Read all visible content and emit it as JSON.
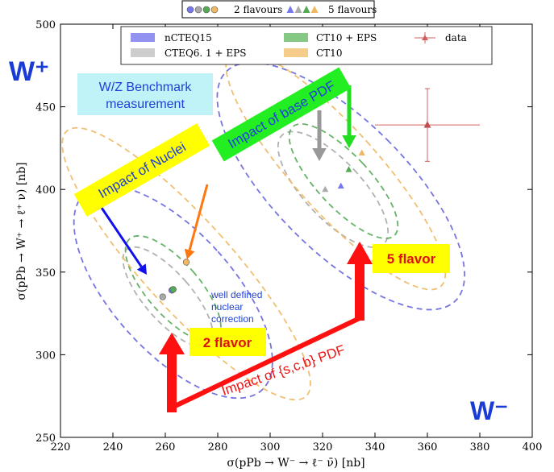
{
  "chart_data": {
    "type": "scatter",
    "title": "",
    "xlabel": "σ(pPb → W⁻ → ℓ⁻ ν̄) [nb]",
    "ylabel": "σ(pPb → W⁺ → ℓ⁺ ν) [nb]",
    "xlim": [
      220,
      400
    ],
    "ylim": [
      250,
      500
    ],
    "xticks": [
      220,
      240,
      260,
      280,
      300,
      320,
      340,
      360,
      380,
      400
    ],
    "yticks": [
      250,
      300,
      350,
      400,
      450,
      500
    ],
    "grid": false,
    "top_legend": {
      "placement": "top-center-outside",
      "entries": [
        {
          "label": "2 flavours",
          "marker": "circle"
        },
        {
          "label": "5 flavours",
          "marker": "triangle"
        }
      ]
    },
    "legend": {
      "placement": "top",
      "entries": [
        {
          "label": "nCTEQ15",
          "color": "#7777ee",
          "kind": "patch"
        },
        {
          "label": "CTEQ6. 1 + EPS",
          "color": "#c0c0c0",
          "kind": "patch"
        },
        {
          "label": "CT10 + EPS",
          "color": "#66bb66",
          "kind": "patch"
        },
        {
          "label": "CT10",
          "color": "#f5c77e",
          "kind": "patch"
        },
        {
          "label": "data",
          "color": "#d06060",
          "kind": "errorbar"
        }
      ]
    },
    "series": [
      {
        "name": "nCTEQ15",
        "color": "#7777ee",
        "points": [
          {
            "flavours": 2,
            "x": 262.5,
            "y": 339
          },
          {
            "flavours": 5,
            "x": 327,
            "y": 402
          }
        ]
      },
      {
        "name": "CTEQ6. 1 + EPS",
        "color": "#aaaaaa",
        "points": [
          {
            "flavours": 2,
            "x": 259,
            "y": 335
          },
          {
            "flavours": 5,
            "x": 321,
            "y": 400
          }
        ]
      },
      {
        "name": "CT10 + EPS",
        "color": "#55aa55",
        "points": [
          {
            "flavours": 2,
            "x": 263,
            "y": 339.5
          },
          {
            "flavours": 5,
            "x": 330,
            "y": 412
          }
        ]
      },
      {
        "name": "CT10",
        "color": "#f0b860",
        "points": [
          {
            "flavours": 2,
            "x": 268,
            "y": 356
          },
          {
            "flavours": 5,
            "x": 335,
            "y": 422
          }
        ]
      }
    ],
    "data_point": {
      "name": "data",
      "x": 360,
      "y": 439,
      "xerr": [
        20,
        20
      ],
      "yerr": [
        22,
        22
      ]
    },
    "ellipses": [
      {
        "series": "nCTEQ15",
        "flavours": 2,
        "cx": 263,
        "cy": 338,
        "rx": 23,
        "ry": 80,
        "angle_deg": -30,
        "color": "#6666dd"
      },
      {
        "series": "CTEQ6. 1 + EPS",
        "flavours": 2,
        "cx": 261,
        "cy": 335,
        "rx": 9,
        "ry": 38,
        "angle_deg": -29,
        "color": "#a8a8a8"
      },
      {
        "series": "CT10 + EPS",
        "flavours": 2,
        "cx": 263,
        "cy": 340,
        "rx": 10,
        "ry": 40,
        "angle_deg": -29,
        "color": "#55aa55"
      },
      {
        "series": "CT10",
        "flavours": 2,
        "cx": 268,
        "cy": 355,
        "rx": 17,
        "ry": 108,
        "angle_deg": -30,
        "color": "#f0b860"
      },
      {
        "series": "nCTEQ15",
        "flavours": 5,
        "cx": 327,
        "cy": 402,
        "rx": 25,
        "ry": 98,
        "angle_deg": -33,
        "color": "#6666dd"
      },
      {
        "series": "CTEQ6. 1 + EPS",
        "flavours": 5,
        "cx": 324,
        "cy": 400,
        "rx": 11,
        "ry": 45,
        "angle_deg": -31,
        "color": "#a8a8a8"
      },
      {
        "series": "CT10 + EPS",
        "flavours": 5,
        "cx": 328,
        "cy": 405,
        "rx": 10,
        "ry": 45,
        "angle_deg": -31,
        "color": "#55aa55"
      },
      {
        "series": "CT10",
        "flavours": 5,
        "cx": 325,
        "cy": 412,
        "rx": 16,
        "ry": 95,
        "angle_deg": -30,
        "color": "#f0b860"
      }
    ],
    "annotations": {
      "w_plus": "W⁺",
      "w_minus": "W⁻",
      "benchmark": [
        "W/Z Benchmark",
        "measurement"
      ],
      "nuclei": "Impact  of Nuclei",
      "base_pdf": "Impact of base PDF",
      "five_flavor": "5 flavor",
      "two_flavor": "2 flavor",
      "well_defined": [
        "well defined",
        "nuclear",
        "correction"
      ],
      "scb": "Impact of {s,c,b} PDF"
    }
  }
}
